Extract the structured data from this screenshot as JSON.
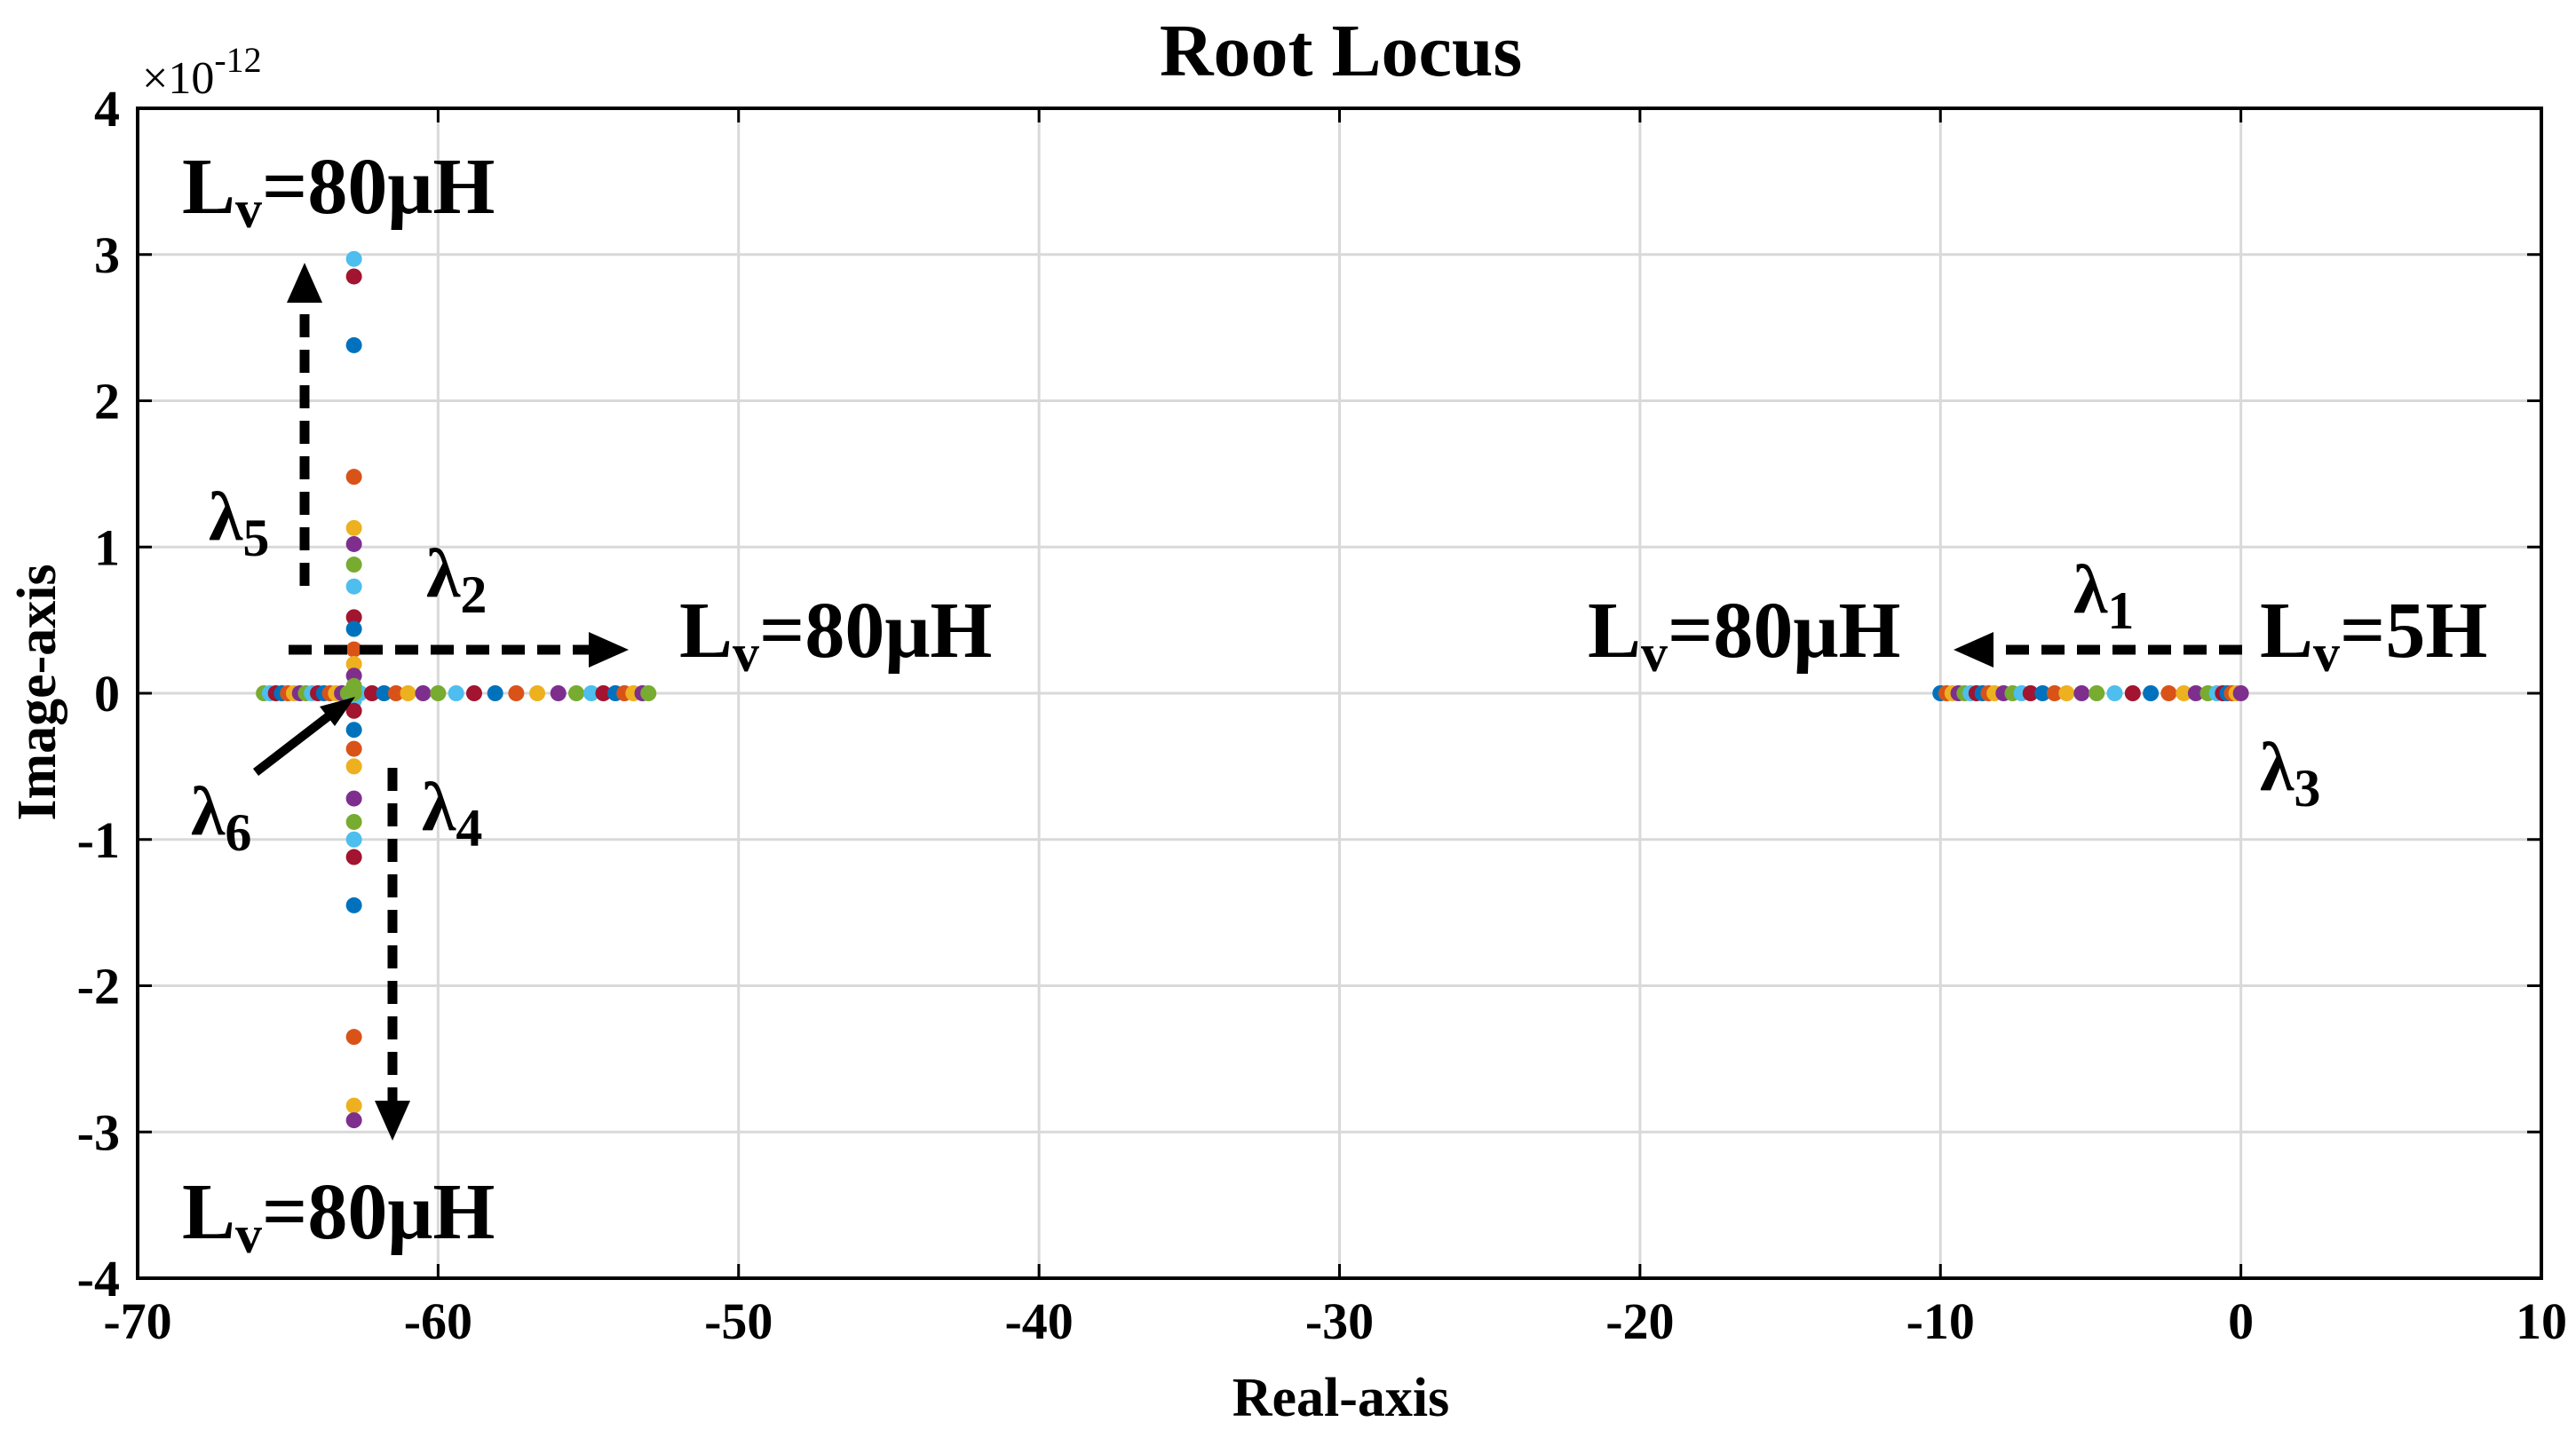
{
  "chart_data": {
    "type": "scatter",
    "title": "Root Locus",
    "xlabel": "Real-axis",
    "ylabel": "Image-axis",
    "xlim": [
      -70,
      10
    ],
    "ylim": [
      -4e-12,
      4e-12
    ],
    "xticks": [
      "-70",
      "-60",
      "-50",
      "-40",
      "-30",
      "-20",
      "-10",
      "0",
      "10"
    ],
    "yticks": [
      "-4",
      "-3",
      "-2",
      "-1",
      "0",
      "1",
      "2",
      "3",
      "4"
    ],
    "y_exponent_label": "×10",
    "y_exponent": "-12",
    "grid": true,
    "palette": [
      "#0072BD",
      "#D95319",
      "#EDB120",
      "#7E2F8E",
      "#77AC30",
      "#4DBEEE",
      "#A2142F"
    ],
    "series": [
      {
        "x": [
          -10.0,
          -9.8,
          -9.6,
          -9.4,
          -9.2,
          -9.0,
          -8.8,
          -8.6,
          -8.4,
          -8.2,
          -7.9,
          -7.6,
          -7.3,
          -7.0,
          -6.6,
          -6.2,
          -5.8,
          -5.3,
          -4.8,
          -4.2,
          -3.6,
          -3.0,
          -2.4,
          -1.9,
          -1.5,
          -1.1,
          -0.8,
          -0.6,
          -0.45,
          -0.3,
          -0.15,
          0.0
        ],
        "y": [
          0,
          0,
          0,
          0,
          0,
          0,
          0,
          0,
          0,
          0,
          0,
          0,
          0,
          0,
          0,
          0,
          0,
          0,
          0,
          0,
          0,
          0,
          0,
          0,
          0,
          0,
          0,
          0,
          0,
          0,
          0,
          0
        ]
      },
      {
        "x": [
          -65.8,
          -65.6,
          -65.4,
          -65.2,
          -65.0,
          -64.8,
          -64.6,
          -64.4,
          -64.2,
          -64.0,
          -63.8,
          -63.6,
          -63.4,
          -63.2,
          -63.0,
          -62.6,
          -62.2,
          -61.8,
          -61.4,
          -61.0,
          -60.5,
          -60.0,
          -59.4,
          -58.8,
          -58.1,
          -57.4,
          -56.7,
          -56.0,
          -55.4,
          -54.9,
          -54.5,
          -54.1,
          -53.8,
          -53.5,
          -53.2,
          -53.0
        ],
        "y": [
          0,
          0,
          0,
          0,
          0,
          0,
          0,
          0,
          0,
          0,
          0,
          0,
          0,
          0,
          0,
          0,
          0,
          0,
          0,
          0,
          0,
          0,
          0,
          0,
          0,
          0,
          0,
          0,
          0,
          0,
          0,
          0,
          0,
          0,
          0,
          0
        ]
      },
      {
        "x": [
          -62.8,
          -62.8,
          -62.8,
          -62.8,
          -62.8,
          -62.8,
          -62.8,
          -62.8,
          -62.8,
          -62.8,
          -62.8,
          -62.8,
          -62.8,
          -62.8,
          -62.8,
          -62.8,
          -62.8,
          -62.8,
          -62.8,
          -62.8,
          -62.8,
          -62.8,
          -62.8,
          -62.8,
          -62.8,
          -62.8,
          -62.8,
          -62.8
        ],
        "y": [
          2.97e-12,
          2.85e-12,
          2.38e-12,
          1.48e-12,
          1.13e-12,
          1.02e-12,
          8.8e-13,
          7.3e-13,
          5.2e-13,
          4.4e-13,
          3e-13,
          2e-13,
          1.2e-13,
          5e-14,
          -5e-14,
          -1.2e-13,
          -2.5e-13,
          -3.8e-13,
          -5e-13,
          -7.2e-13,
          -8.8e-13,
          -1e-12,
          -1.12e-12,
          -1.45e-12,
          -2.35e-12,
          -2.82e-12,
          -2.92e-12,
          0.0
        ]
      }
    ],
    "annotations": {
      "lv_top": "L",
      "lv_top_sub": "v",
      "lv_top_val": "=80μH",
      "lv_mid": "L",
      "lv_mid_sub": "v",
      "lv_mid_val": "=80μH",
      "lv_right": "L",
      "lv_right_sub": "v",
      "lv_right_val": "=80μH",
      "lv_start": "L",
      "lv_start_sub": "v",
      "lv_start_val": "=5H",
      "lv_bottom": "L",
      "lv_bottom_sub": "v",
      "lv_bottom_val": "=80μH",
      "lambda": "λ",
      "l1": "1",
      "l2": "2",
      "l3": "3",
      "l4": "4",
      "l5": "5",
      "l6": "6"
    }
  }
}
